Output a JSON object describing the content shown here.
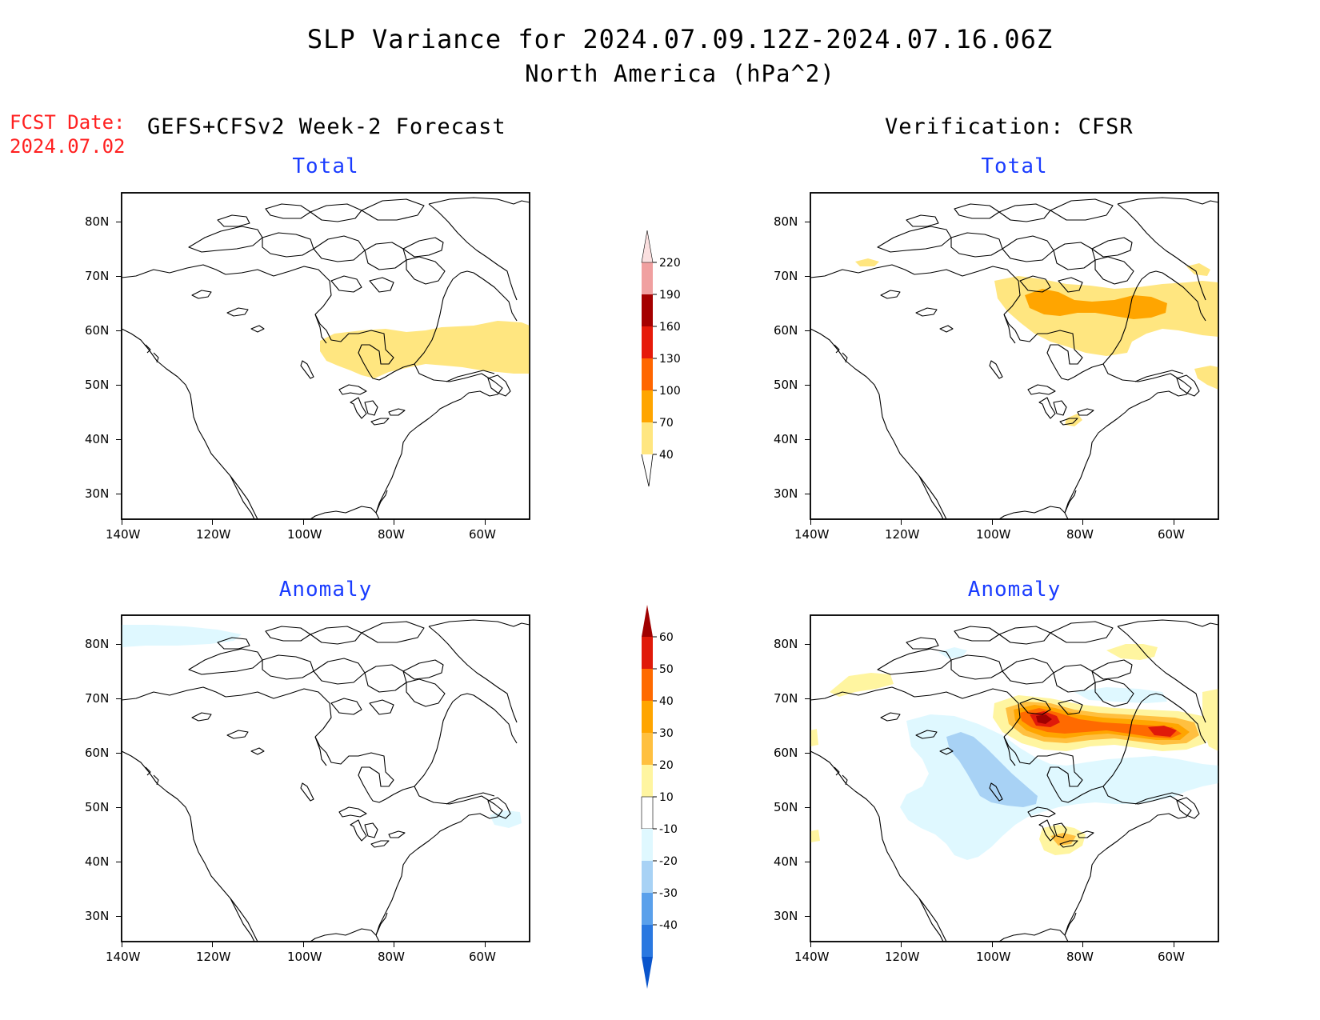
{
  "title": "SLP Variance for 2024.07.09.12Z-2024.07.16.06Z",
  "subtitle": "North America (hPa^2)",
  "fcst_label": "FCST Date:",
  "fcst_date": "2024.07.02",
  "left_header": "GEFS+CFSv2 Week-2 Forecast",
  "right_header": "Verification: CFSR",
  "panels": {
    "fcst_total": {
      "title": "Total"
    },
    "ver_total": {
      "title": "Total"
    },
    "fcst_anom": {
      "title": "Anomaly"
    },
    "ver_anom": {
      "title": "Anomaly"
    }
  },
  "lat_labels": [
    "80N",
    "70N",
    "60N",
    "50N",
    "40N",
    "30N"
  ],
  "lon_labels": [
    "140W",
    "120W",
    "100W",
    "80W",
    "60W"
  ],
  "total_colorbar": {
    "levels": [
      "40",
      "70",
      "100",
      "130",
      "160",
      "190",
      "220"
    ],
    "colors": [
      "#ffe680",
      "#ffa500",
      "#ff6600",
      "#e61a0a",
      "#a50000",
      "#f0a0a0",
      "#fbe0e0"
    ]
  },
  "anomaly_colorbar": {
    "levels": [
      "60",
      "50",
      "40",
      "30",
      "20",
      "10",
      "-10",
      "-20",
      "-30",
      "-40"
    ],
    "colors": [
      "#a00000",
      "#e01a0a",
      "#ff6a00",
      "#ffa500",
      "#ffc040",
      "#fff5a0",
      "#ffffff",
      "#dff8ff",
      "#a8d2f5",
      "#5aa0eb",
      "#2a78e0",
      "#0a55cc"
    ]
  }
}
